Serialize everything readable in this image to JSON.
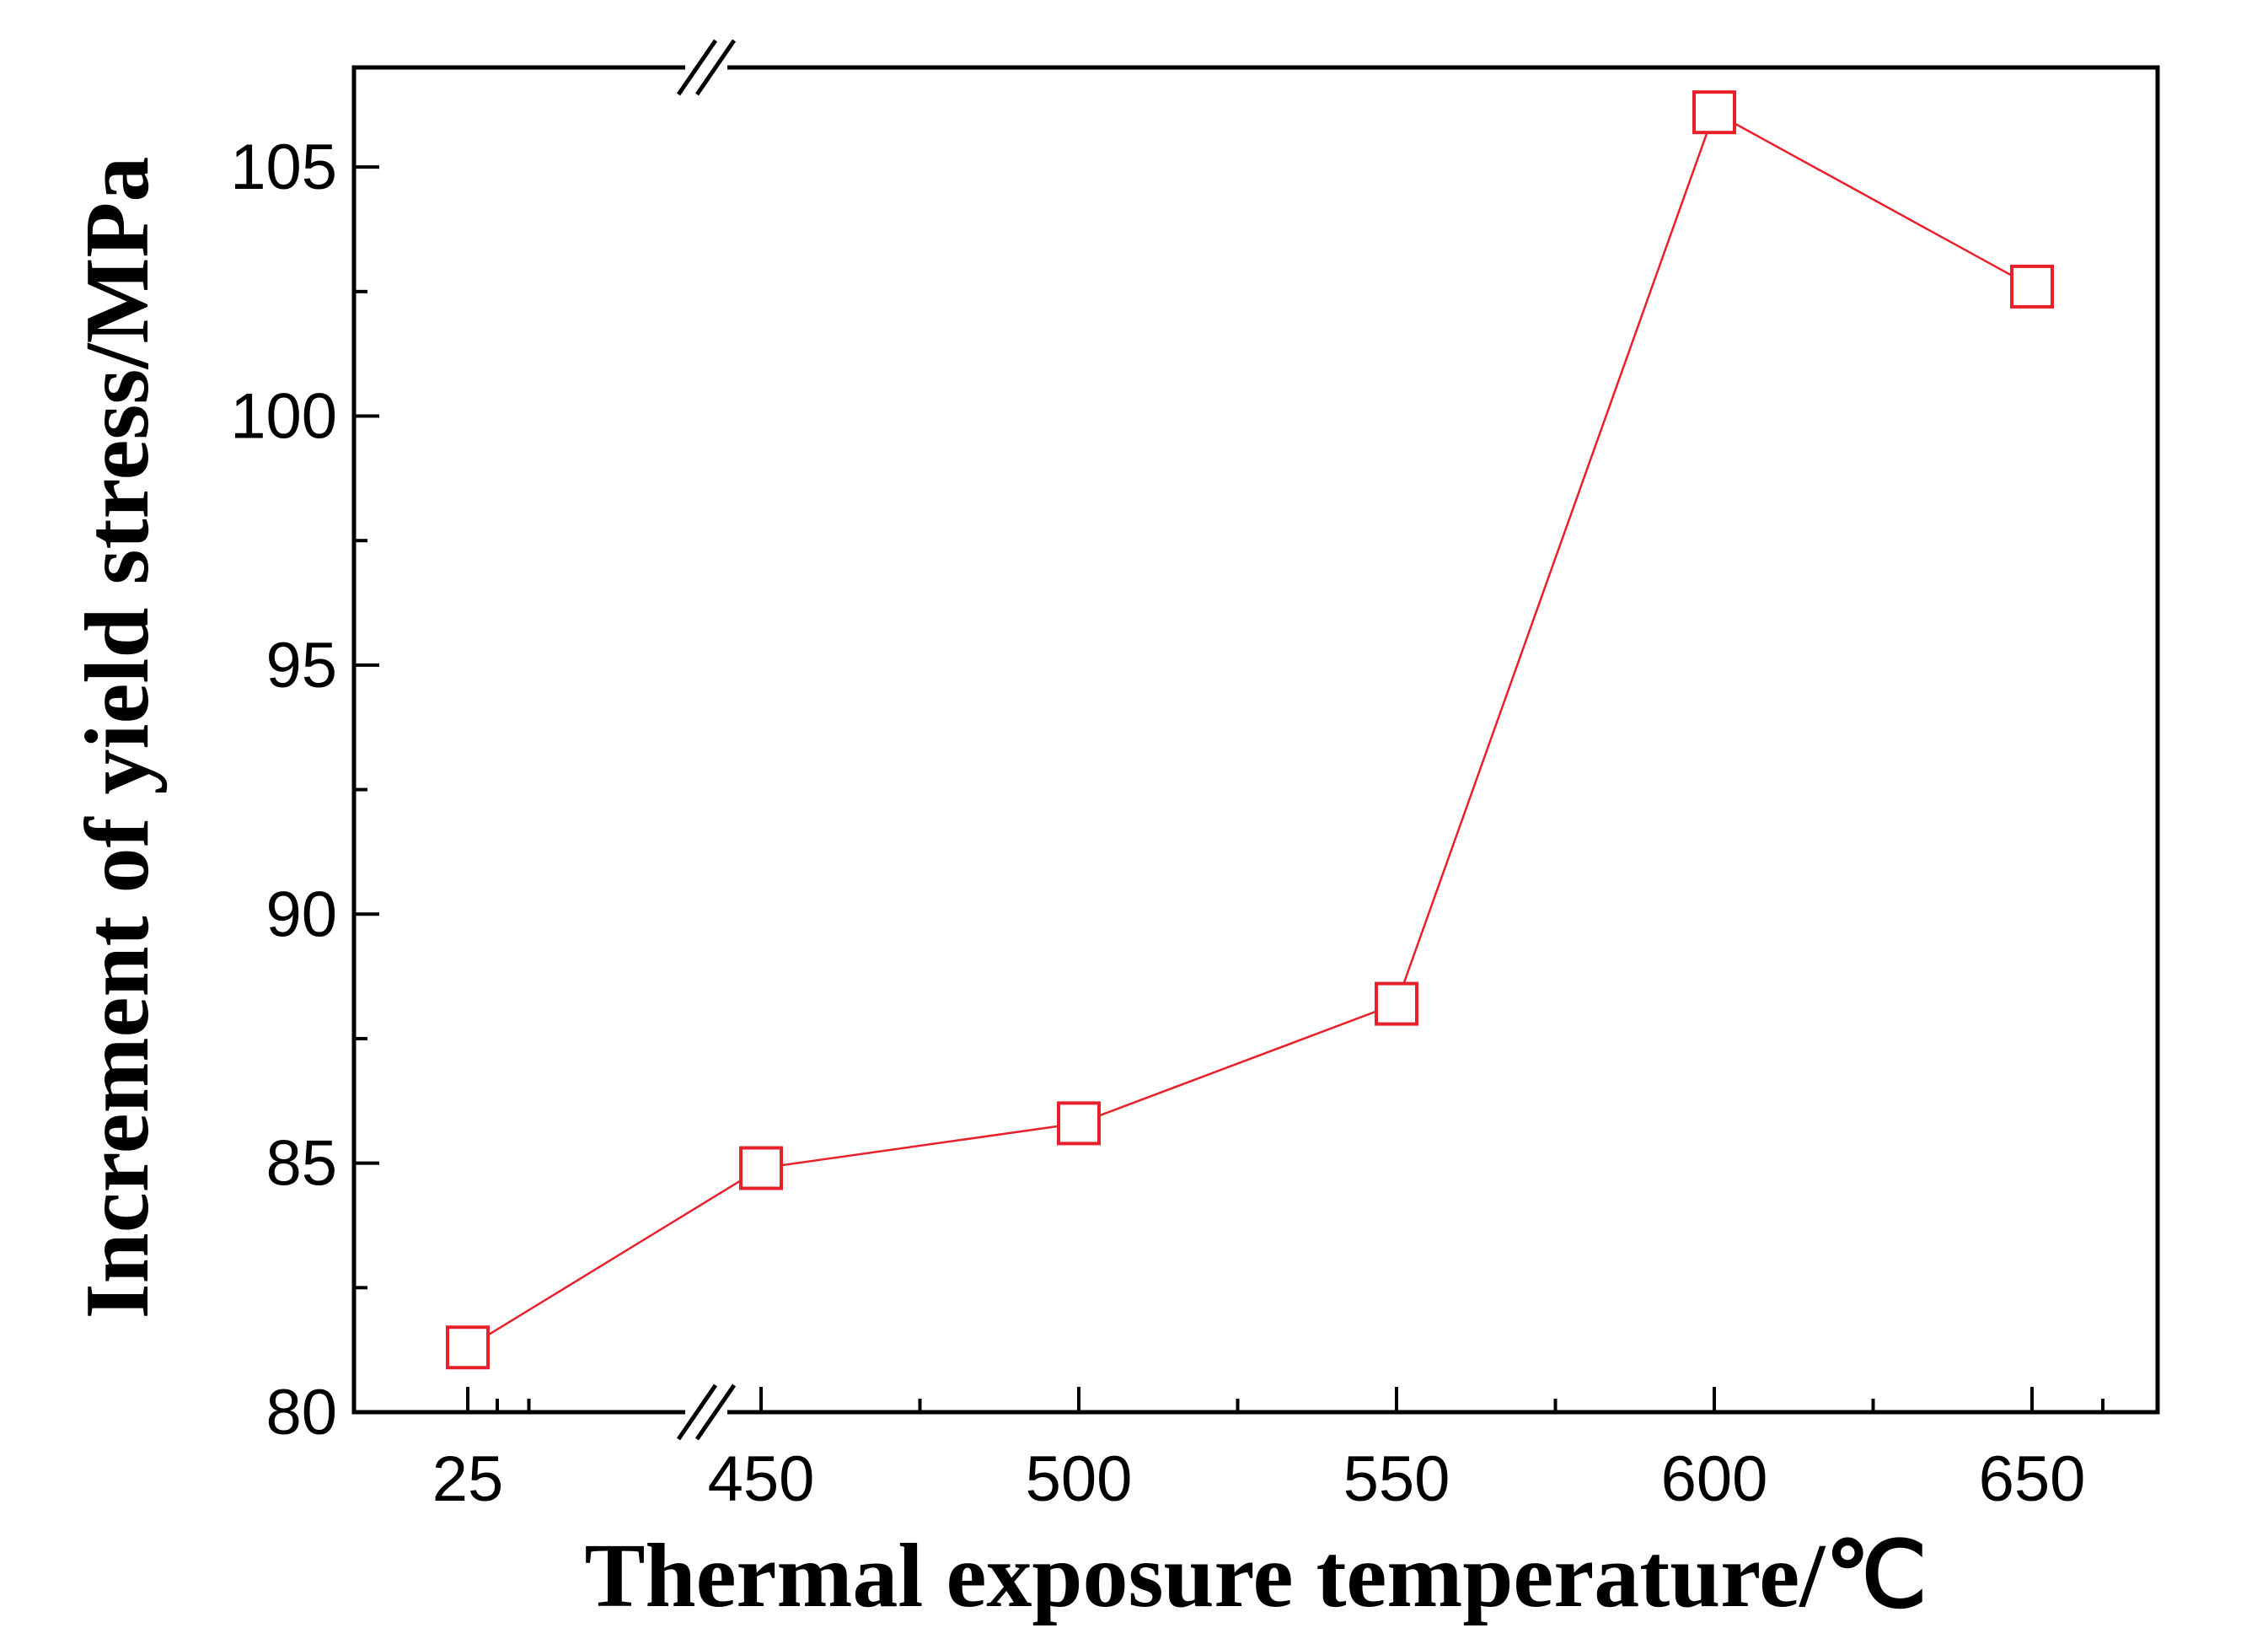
{
  "chart_data": {
    "type": "line",
    "title": "",
    "xlabel": "Thermal exposure temperature/℃",
    "ylabel": "Increment of yield stress/MPa",
    "x_tick_labels": [
      "25",
      "450",
      "500",
      "550",
      "600",
      "650"
    ],
    "x_axis_break": "between 25 and 450",
    "ylim": [
      80,
      107
    ],
    "y_ticks": [
      80,
      85,
      90,
      95,
      100,
      105
    ],
    "grid": false,
    "legend": "none",
    "series": [
      {
        "x": [
          25,
          450,
          500,
          550,
          600,
          650
        ],
        "y": [
          81.3,
          84.9,
          85.8,
          88.2,
          106.1,
          102.6
        ],
        "marker": "open-square",
        "color": "#e8202a"
      }
    ]
  }
}
